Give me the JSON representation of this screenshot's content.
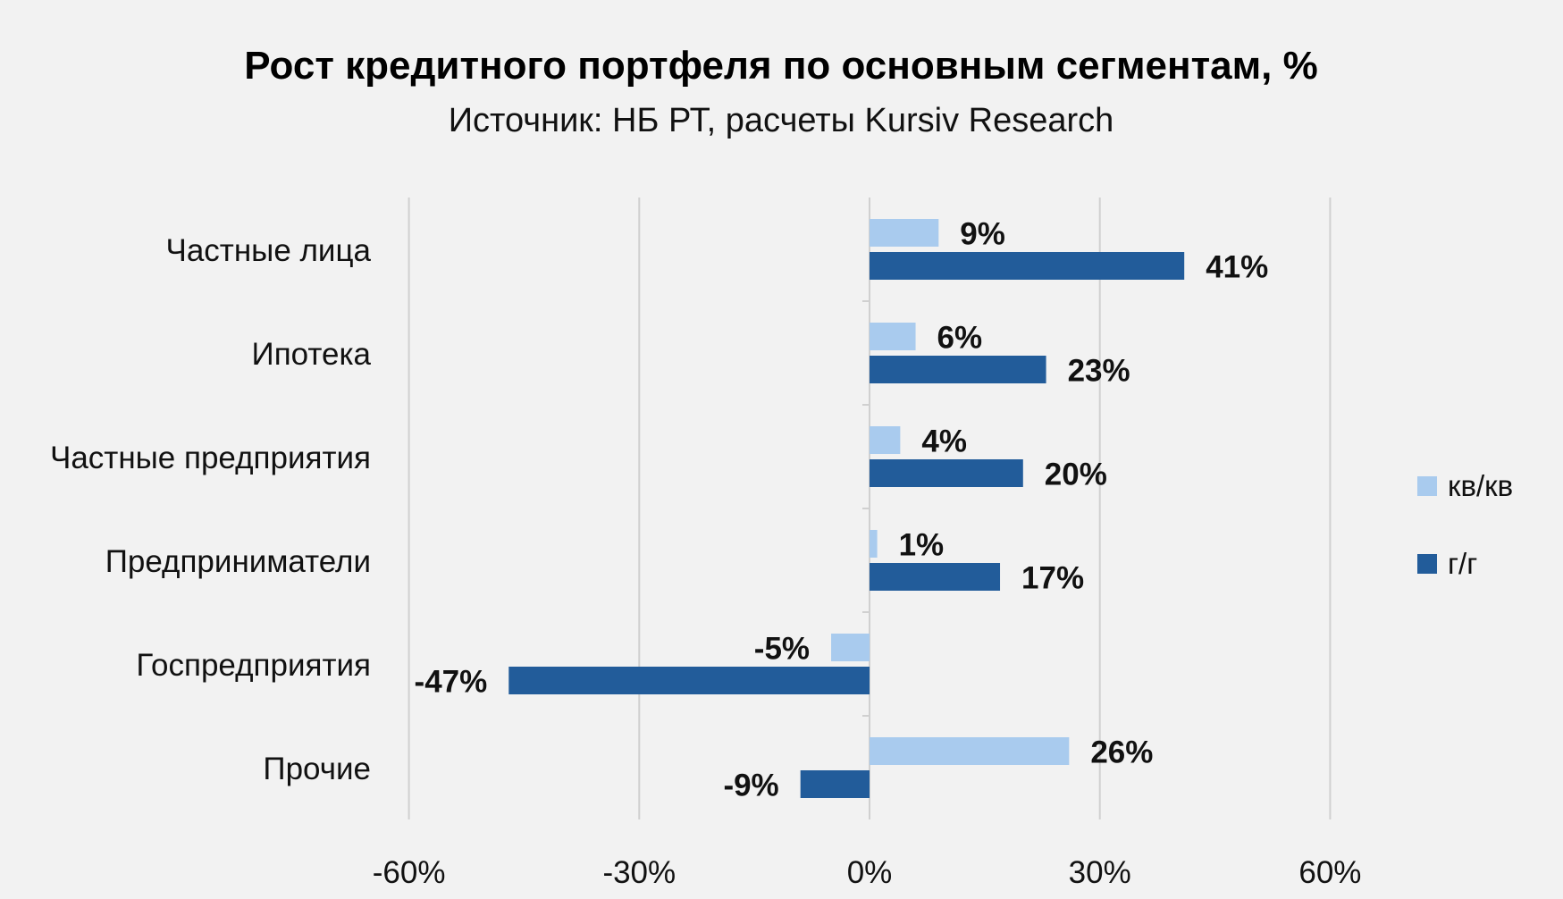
{
  "chart_data": {
    "type": "bar",
    "orientation": "horizontal",
    "title": "Рост кредитного портфеля по основным сегментам, %",
    "subtitle": "Источник: НБ РТ, расчеты Kursiv Research",
    "categories": [
      "Частные лица",
      "Ипотека",
      "Частные предприятия",
      "Предприниматели",
      "Госпредприятия",
      "Прочие"
    ],
    "series": [
      {
        "name": "кв/кв",
        "color": "#a9cbee",
        "values": [
          9,
          6,
          4,
          1,
          -5,
          26
        ],
        "labels": [
          "9%",
          "6%",
          "4%",
          "1%",
          "-5%",
          "26%"
        ]
      },
      {
        "name": "г/г",
        "color": "#225c9a",
        "values": [
          41,
          23,
          20,
          17,
          -47,
          -9
        ],
        "labels": [
          "41%",
          "23%",
          "20%",
          "17%",
          "-47%",
          "-9%"
        ]
      }
    ],
    "xlim": [
      -60,
      60
    ],
    "xticks": [
      -60,
      -30,
      0,
      30,
      60
    ],
    "xtick_labels": [
      "-60%",
      "-30%",
      "0%",
      "30%",
      "60%"
    ],
    "grid": "vertical",
    "legend": "right",
    "background": "#f2f2f2"
  }
}
